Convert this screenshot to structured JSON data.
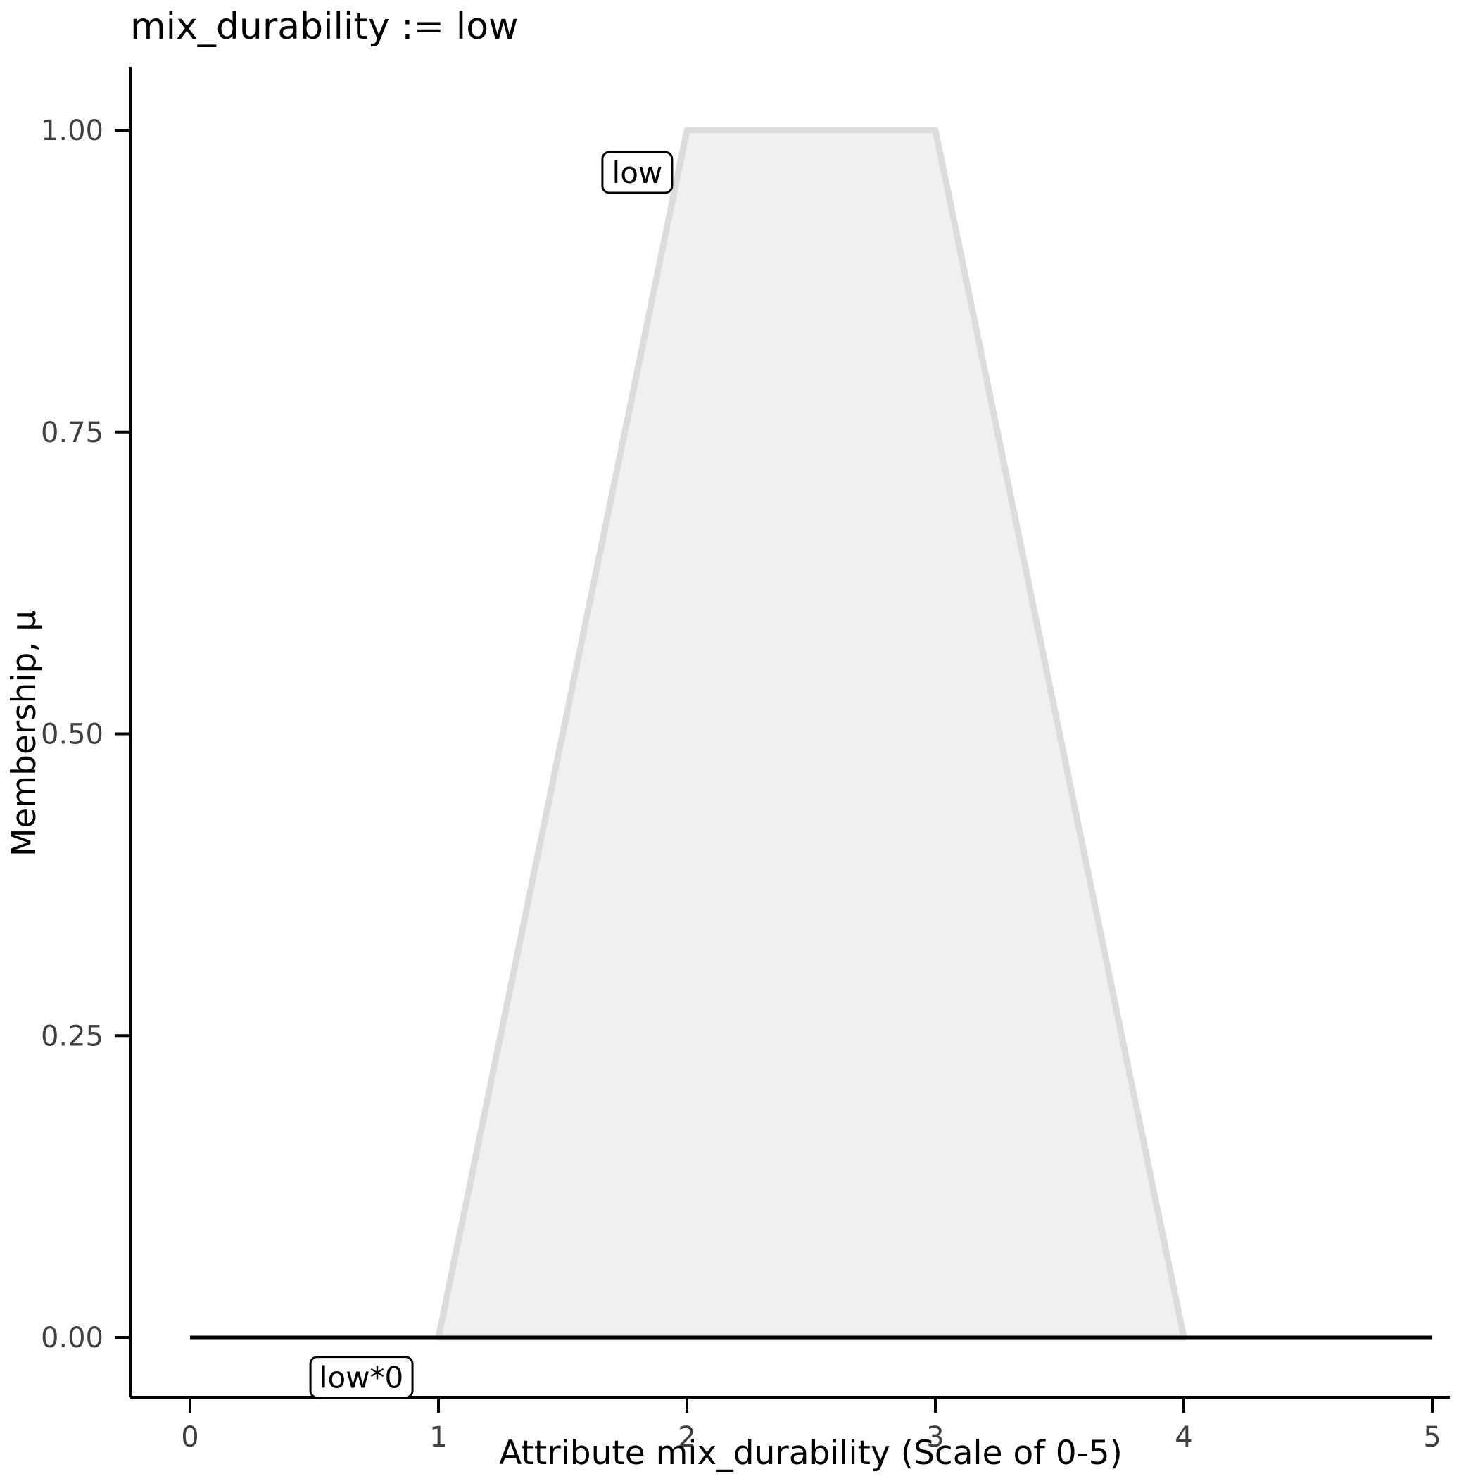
{
  "title": "mix_durability := low",
  "chart_data": {
    "type": "area",
    "title": "mix_durability := low",
    "xlabel": "Attribute mix_durability (Scale of 0-5)",
    "ylabel": "Membership, μ",
    "xlim": [
      0,
      5
    ],
    "ylim": [
      0,
      1
    ],
    "x_ticks": [
      0,
      1,
      2,
      3,
      4,
      5
    ],
    "x_tick_labels": [
      "0",
      "1",
      "2",
      "3",
      "4",
      "5"
    ],
    "y_ticks": [
      0,
      0.25,
      0.5,
      0.75,
      1
    ],
    "y_tick_labels": [
      "0.00",
      "0.25",
      "0.50",
      "0.75",
      "1.00"
    ],
    "grid": false,
    "legend": false,
    "series": [
      {
        "name": "low",
        "kind": "polygon",
        "points": [
          [
            1,
            0
          ],
          [
            2,
            1
          ],
          [
            3,
            1
          ],
          [
            4,
            0
          ]
        ],
        "fill": "#f0f0f0",
        "stroke": "#dcdcdc",
        "stroke_width": 9
      },
      {
        "name": "low*0",
        "kind": "line",
        "points": [
          [
            0,
            0
          ],
          [
            5,
            0
          ]
        ],
        "stroke": "#000000",
        "stroke_width": 5
      }
    ],
    "annotations": [
      {
        "text": "low",
        "x": 1.8,
        "y": 0.965
      },
      {
        "text": "low*0",
        "x": 0.69,
        "y": -0.033
      }
    ],
    "colors": {
      "axis": "#000000",
      "tick": "#000000",
      "tick_text": "#404040",
      "annotation_box_fill": "#ffffff",
      "annotation_box_stroke": "#000000"
    }
  }
}
